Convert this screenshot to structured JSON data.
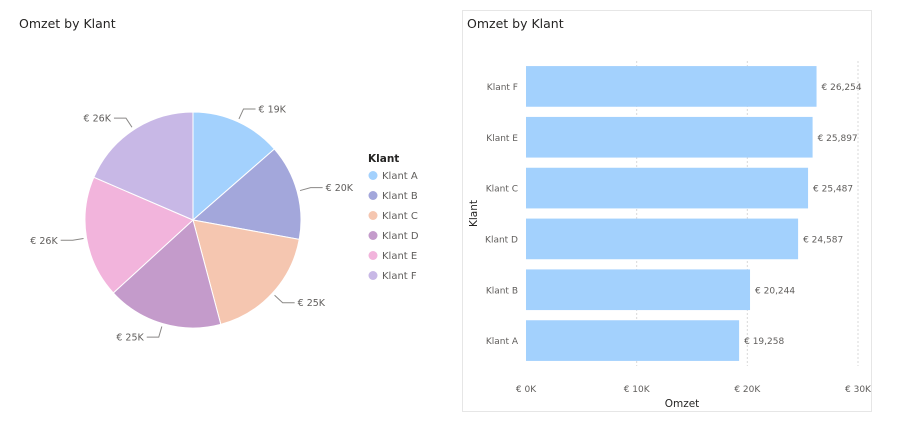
{
  "colors": {
    "Klant A": "#a3d1fd",
    "Klant B": "#a3a7db",
    "Klant C": "#f5c6b0",
    "Klant D": "#c49bcb",
    "Klant E": "#f2b4dc",
    "Klant F": "#c8b8e6",
    "bar": "#a3d1fd"
  },
  "chart_data": [
    {
      "type": "pie",
      "title": "Omzet by Klant",
      "legend_title": "Klant",
      "legend_position": "right",
      "categories": [
        "Klant A",
        "Klant B",
        "Klant C",
        "Klant D",
        "Klant E",
        "Klant F"
      ],
      "values": [
        19258,
        20244,
        25487,
        24587,
        25897,
        26254
      ],
      "data_labels": [
        "€ 19K",
        "€ 20K",
        "€ 25K",
        "€ 25K",
        "€ 26K",
        "€ 26K"
      ]
    },
    {
      "type": "bar",
      "orientation": "horizontal",
      "title": "Omzet by Klant",
      "xlabel": "Omzet",
      "ylabel": "Klant",
      "categories": [
        "Klant F",
        "Klant E",
        "Klant C",
        "Klant D",
        "Klant B",
        "Klant A"
      ],
      "values": [
        26254,
        25897,
        25487,
        24587,
        20244,
        19258
      ],
      "data_labels": [
        "€ 26,254",
        "€ 25,897",
        "€ 25,487",
        "€ 24,587",
        "€ 20,244",
        "€ 19,258"
      ],
      "xlim": [
        0,
        30000
      ],
      "xticks": [
        0,
        10000,
        20000,
        30000
      ],
      "xtick_labels": [
        "€ 0K",
        "€ 10K",
        "€ 20K",
        "€ 30K"
      ],
      "grid": "vertical dashed"
    }
  ]
}
